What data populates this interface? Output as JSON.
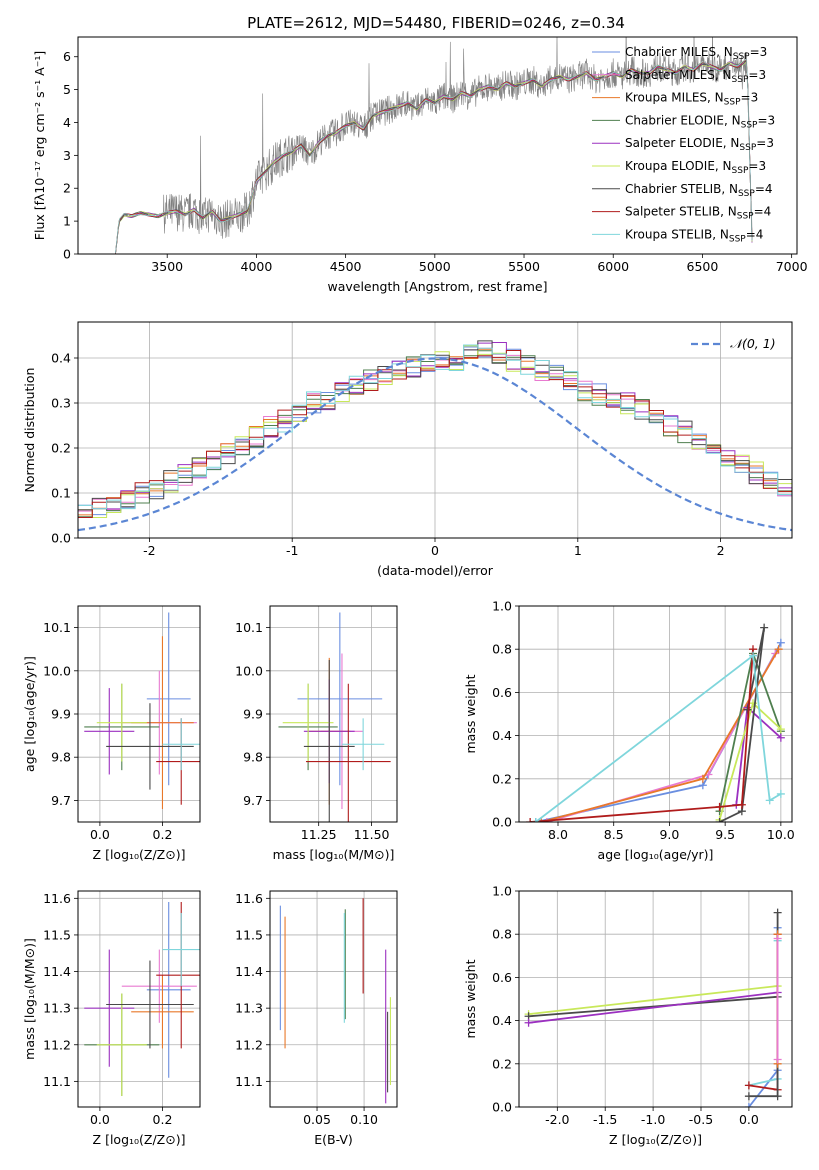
{
  "figure": {
    "title": "PLATE=2612, MJD=54480, FIBERID=0246, z=0.34"
  },
  "colors": {
    "chabrier_miles": "#6a8ee0",
    "salpeter_miles": "#e87ad0",
    "kroupa_miles": "#e8782a",
    "chabrier_elodie": "#4f7f4f",
    "salpeter_elodie": "#9b30c0",
    "kroupa_elodie": "#c8e85a",
    "chabrier_stelib": "#4a4a4a",
    "salpeter_stelib": "#b01c1c",
    "kroupa_stelib": "#7fd6dc",
    "spectrum": "#808080",
    "grid": "#b0b0b0",
    "normal_curve": "#5b86d4"
  },
  "chart_data": [
    {
      "id": "spectrum",
      "type": "line",
      "title": "PLATE=2612, MJD=54480, FIBERID=0246, z=0.34",
      "xlabel": "wavelength [Angstrom, rest frame]",
      "ylabel": "Flux [fλ10⁻¹⁷ erg cm⁻² s⁻¹ A⁻¹]",
      "xlim": [
        3000,
        7030
      ],
      "ylim": [
        0,
        6.6
      ],
      "xticks": [
        3500,
        4000,
        4500,
        5000,
        5500,
        6000,
        6500,
        7000
      ],
      "yticks": [
        0,
        1,
        2,
        3,
        4,
        5,
        6
      ],
      "grid": false,
      "legend_position": "top-right",
      "continuum": {
        "x": [
          3210,
          3230,
          3260,
          3300,
          3350,
          3400,
          3450,
          3500,
          3550,
          3600,
          3650,
          3700,
          3750,
          3800,
          3850,
          3900,
          3950,
          4000,
          4050,
          4100,
          4150,
          4200,
          4250,
          4300,
          4350,
          4400,
          4450,
          4500,
          4550,
          4600,
          4650,
          4700,
          4750,
          4800,
          4850,
          4900,
          4950,
          5000,
          5050,
          5100,
          5150,
          5200,
          5250,
          5300,
          5350,
          5400,
          5450,
          5500,
          5550,
          5600,
          5650,
          5700,
          5750,
          5800,
          5850,
          5900,
          5950,
          6000,
          6050,
          6100,
          6150,
          6200,
          6250,
          6300,
          6350,
          6400,
          6450,
          6500,
          6550,
          6600,
          6650,
          6700,
          6750,
          6780
        ],
        "y": [
          0.0,
          1.0,
          1.2,
          1.15,
          1.25,
          1.2,
          1.15,
          1.25,
          1.3,
          1.2,
          1.35,
          1.1,
          1.3,
          1.0,
          1.1,
          1.2,
          1.3,
          2.2,
          2.5,
          2.8,
          3.0,
          3.1,
          3.3,
          3.0,
          3.4,
          3.6,
          3.7,
          3.9,
          4.0,
          3.8,
          4.2,
          4.3,
          4.4,
          4.5,
          4.6,
          4.4,
          4.7,
          4.6,
          4.8,
          4.7,
          4.9,
          4.8,
          5.0,
          5.1,
          5.0,
          5.2,
          5.1,
          5.2,
          5.3,
          5.1,
          5.3,
          5.4,
          5.3,
          5.4,
          5.5,
          5.3,
          5.4,
          5.5,
          5.4,
          5.6,
          5.5,
          5.5,
          5.7,
          5.6,
          5.5,
          5.7,
          5.6,
          5.8,
          5.7,
          5.6,
          5.8,
          5.7,
          5.9,
          0.0
        ]
      },
      "series": [
        {
          "name": "Chabrier MILES, N_SSP=3",
          "color_key": "chabrier_miles"
        },
        {
          "name": "Salpeter MILES, N_SSP=3",
          "color_key": "salpeter_miles"
        },
        {
          "name": "Kroupa MILES, N_SSP=3",
          "color_key": "kroupa_miles"
        },
        {
          "name": "Chabrier ELODIE, N_SSP=3",
          "color_key": "chabrier_elodie"
        },
        {
          "name": "Salpeter ELODIE, N_SSP=3",
          "color_key": "salpeter_elodie"
        },
        {
          "name": "Kroupa ELODIE, N_SSP=3",
          "color_key": "kroupa_elodie"
        },
        {
          "name": "Chabrier STELIB, N_SSP=4",
          "color_key": "chabrier_stelib"
        },
        {
          "name": "Salpeter STELIB, N_SSP=4",
          "color_key": "salpeter_stelib"
        },
        {
          "name": "Kroupa STELIB, N_SSP=4",
          "color_key": "kroupa_stelib"
        }
      ],
      "legend_labels": [
        {
          "pre": "Chabrier MILES, N",
          "sub": "SSP",
          "post": "=3"
        },
        {
          "pre": "Salpeter MILES, N",
          "sub": "SSP",
          "post": "=3"
        },
        {
          "pre": "Kroupa MILES, N",
          "sub": "SSP",
          "post": "=3"
        },
        {
          "pre": "Chabrier ELODIE, N",
          "sub": "SSP",
          "post": "=3"
        },
        {
          "pre": "Salpeter ELODIE, N",
          "sub": "SSP",
          "post": "=3"
        },
        {
          "pre": "Kroupa ELODIE, N",
          "sub": "SSP",
          "post": "=3"
        },
        {
          "pre": "Chabrier STELIB, N",
          "sub": "SSP",
          "post": "=4"
        },
        {
          "pre": "Salpeter STELIB, N",
          "sub": "SSP",
          "post": "=4"
        },
        {
          "pre": "Kroupa STELIB, N",
          "sub": "SSP",
          "post": "=4"
        }
      ]
    },
    {
      "id": "residuals",
      "type": "line",
      "xlabel": "(data-model)/error",
      "ylabel": "Normed distribution",
      "xlim": [
        -2.5,
        2.5
      ],
      "ylim": [
        0,
        0.48
      ],
      "xticks": [
        -2,
        -1,
        0,
        1,
        2
      ],
      "yticks": [
        0.0,
        0.1,
        0.2,
        0.3,
        0.4
      ],
      "grid": true,
      "legend_position": "top-right",
      "legend_label": "𝒩(0, 1)",
      "bin_width": 0.1,
      "histogram_mean": [
        0.035,
        0.04,
        0.045,
        0.05,
        0.06,
        0.065,
        0.07,
        0.08,
        0.09,
        0.1,
        0.11,
        0.125,
        0.14,
        0.155,
        0.17,
        0.19,
        0.21,
        0.225,
        0.245,
        0.26,
        0.28,
        0.3,
        0.31,
        0.325,
        0.34,
        0.35,
        0.36,
        0.37,
        0.38,
        0.39,
        0.39,
        0.395,
        0.41,
        0.42,
        0.41,
        0.395,
        0.38,
        0.37,
        0.36,
        0.35,
        0.33,
        0.32,
        0.31,
        0.3,
        0.285,
        0.27,
        0.25,
        0.235,
        0.215,
        0.2,
        0.18,
        0.165,
        0.145,
        0.13,
        0.115,
        0.1,
        0.09,
        0.08,
        0.07,
        0.06,
        0.055,
        0.045,
        0.04,
        0.035,
        0.03,
        0.025,
        0.02,
        0.02,
        0.03,
        0.03
      ],
      "normal": {
        "mean": 0,
        "sigma": 1
      }
    },
    {
      "id": "age_vs_Z",
      "type": "scatter",
      "xlabel": "Z [log₁₀(Z/Z⊙)]",
      "ylabel": "age  [log₁₀(age/yr)]",
      "xlim": [
        -0.07,
        0.32
      ],
      "ylim": [
        9.65,
        10.15
      ],
      "xticks": [
        0.0,
        0.2
      ],
      "yticks": [
        9.7,
        9.8,
        9.9,
        10.0,
        10.1
      ],
      "grid": true,
      "points": [
        {
          "color_key": "chabrier_miles",
          "x": 0.22,
          "xerr": 0.07,
          "y": 9.935,
          "yerr": 0.2
        },
        {
          "color_key": "salpeter_miles",
          "x": 0.19,
          "xerr": 0.12,
          "y": 9.88,
          "yerr": 0.12
        },
        {
          "color_key": "kroupa_miles",
          "x": 0.2,
          "xerr": 0.1,
          "y": 9.88,
          "yerr": 0.2
        },
        {
          "color_key": "chabrier_elodie",
          "x": 0.07,
          "xerr": 0.12,
          "y": 9.87,
          "yerr": 0.1
        },
        {
          "color_key": "salpeter_elodie",
          "x": 0.03,
          "xerr": 0.08,
          "y": 9.86,
          "yerr": 0.1
        },
        {
          "color_key": "kroupa_elodie",
          "x": 0.07,
          "xerr": 0.08,
          "y": 9.88,
          "yerr": 0.09
        },
        {
          "color_key": "chabrier_stelib",
          "x": 0.16,
          "xerr": 0.14,
          "y": 9.825,
          "yerr": 0.1
        },
        {
          "color_key": "salpeter_stelib",
          "x": 0.26,
          "xerr": 0.08,
          "y": 9.79,
          "yerr": 0.1
        },
        {
          "color_key": "kroupa_stelib",
          "x": 0.26,
          "xerr": 0.06,
          "y": 9.83,
          "yerr": 0.06
        }
      ]
    },
    {
      "id": "age_vs_mass",
      "type": "scatter",
      "xlabel": "mass [log₁₀(M/M⊙)]",
      "ylabel": "",
      "xlim": [
        11.02,
        11.62
      ],
      "ylim": [
        9.65,
        10.15
      ],
      "xticks": [
        11.25,
        11.5
      ],
      "yticks": [
        9.7,
        9.8,
        9.9,
        10.0,
        10.1
      ],
      "grid": true,
      "points": [
        {
          "color_key": "chabrier_miles",
          "x": 11.35,
          "xerr": 0.2,
          "y": 9.935,
          "yerr": 0.2
        },
        {
          "color_key": "salpeter_miles",
          "x": 11.36,
          "xerr": 0.1,
          "y": 9.86,
          "yerr": 0.18
        },
        {
          "color_key": "kroupa_miles",
          "x": 11.3,
          "xerr": 0.1,
          "y": 9.86,
          "yerr": 0.17
        },
        {
          "color_key": "chabrier_elodie",
          "x": 11.2,
          "xerr": 0.14,
          "y": 9.87,
          "yerr": 0.1
        },
        {
          "color_key": "salpeter_elodie",
          "x": 11.3,
          "xerr": 0.12,
          "y": 9.86,
          "yerr": 0.12
        },
        {
          "color_key": "kroupa_elodie",
          "x": 11.2,
          "xerr": 0.12,
          "y": 9.88,
          "yerr": 0.09
        },
        {
          "color_key": "chabrier_stelib",
          "x": 11.3,
          "xerr": 0.12,
          "y": 9.825,
          "yerr": 0.2
        },
        {
          "color_key": "salpeter_stelib",
          "x": 11.39,
          "xerr": 0.2,
          "y": 9.79,
          "yerr": 0.18
        },
        {
          "color_key": "kroupa_stelib",
          "x": 11.46,
          "xerr": 0.1,
          "y": 9.83,
          "yerr": 0.06
        }
      ]
    },
    {
      "id": "weight_vs_age",
      "type": "line",
      "xlabel": "age  [log₁₀(age/yr)]",
      "ylabel": "mass weight",
      "xlim": [
        7.65,
        10.1
      ],
      "ylim": [
        0,
        1
      ],
      "xticks": [
        8.0,
        8.5,
        9.0,
        9.5,
        10.0
      ],
      "yticks": [
        0.0,
        0.2,
        0.4,
        0.6,
        0.8,
        1.0
      ],
      "grid": true,
      "series": [
        {
          "color_key": "chabrier_miles",
          "x": [
            7.8,
            9.3,
            10.0
          ],
          "y": [
            0.0,
            0.17,
            0.83
          ]
        },
        {
          "color_key": "salpeter_miles",
          "x": [
            7.9,
            9.35,
            9.95
          ],
          "y": [
            0.0,
            0.22,
            0.78
          ]
        },
        {
          "color_key": "kroupa_miles",
          "x": [
            7.85,
            9.3,
            9.98
          ],
          "y": [
            0.0,
            0.2,
            0.8
          ]
        },
        {
          "color_key": "chabrier_elodie",
          "x": [
            9.45,
            9.75,
            10.0
          ],
          "y": [
            0.05,
            0.78,
            0.42
          ]
        },
        {
          "color_key": "salpeter_elodie",
          "x": [
            9.6,
            9.7,
            10.0
          ],
          "y": [
            0.08,
            0.53,
            0.39
          ]
        },
        {
          "color_key": "kroupa_elodie",
          "x": [
            9.45,
            9.75,
            10.0
          ],
          "y": [
            0.01,
            0.55,
            0.43
          ]
        },
        {
          "color_key": "chabrier_stelib",
          "x": [
            9.45,
            9.65,
            9.85,
            9.7
          ],
          "y": [
            0.0,
            0.05,
            0.9,
            0.52
          ]
        },
        {
          "color_key": "salpeter_stelib",
          "x": [
            7.75,
            9.45,
            9.65,
            9.75
          ],
          "y": [
            0.0,
            0.07,
            0.08,
            0.8
          ]
        },
        {
          "color_key": "kroupa_stelib",
          "x": [
            7.8,
            9.75,
            9.9,
            10.0
          ],
          "y": [
            0.0,
            0.77,
            0.1,
            0.13
          ]
        }
      ]
    },
    {
      "id": "mass_vs_Z",
      "type": "scatter",
      "xlabel": "Z [log₁₀(Z/Z⊙)]",
      "ylabel": "mass [log₁₀(M/M⊙)]",
      "xlim": [
        -0.07,
        0.32
      ],
      "ylim": [
        11.03,
        11.62
      ],
      "xticks": [
        0.0,
        0.2
      ],
      "yticks": [
        11.1,
        11.2,
        11.3,
        11.4,
        11.5,
        11.6
      ],
      "grid": true,
      "points": [
        {
          "color_key": "chabrier_miles",
          "x": 0.22,
          "xerr": 0.07,
          "y": 11.35,
          "yerr": 0.24
        },
        {
          "color_key": "salpeter_miles",
          "x": 0.19,
          "xerr": 0.12,
          "y": 11.36,
          "yerr": 0.1
        },
        {
          "color_key": "kroupa_miles",
          "x": 0.2,
          "xerr": 0.1,
          "y": 11.29,
          "yerr": 0.1
        },
        {
          "color_key": "chabrier_elodie",
          "x": 0.07,
          "xerr": 0.12,
          "y": 11.2,
          "yerr": 0.14
        },
        {
          "color_key": "salpeter_elodie",
          "x": 0.03,
          "xerr": 0.08,
          "y": 11.3,
          "yerr": 0.16
        },
        {
          "color_key": "kroupa_elodie",
          "x": 0.07,
          "xerr": 0.08,
          "y": 11.2,
          "yerr": 0.14
        },
        {
          "color_key": "chabrier_stelib",
          "x": 0.16,
          "xerr": 0.14,
          "y": 11.31,
          "yerr": 0.12
        },
        {
          "color_key": "salpeter_stelib",
          "x": 0.26,
          "xerr": 0.08,
          "y": 11.39,
          "yerr": 0.2
        },
        {
          "color_key": "kroupa_stelib",
          "x": 0.26,
          "xerr": 0.06,
          "y": 11.46,
          "yerr": 0.1
        }
      ]
    },
    {
      "id": "mass_vs_ebv",
      "type": "scatter",
      "xlabel": "E(B-V)",
      "ylabel": "",
      "xlim": [
        0.0,
        0.135
      ],
      "ylim": [
        11.03,
        11.62
      ],
      "xticks": [
        0.05,
        0.1
      ],
      "yticks": [
        11.1,
        11.2,
        11.3,
        11.4,
        11.5,
        11.6
      ],
      "grid": true,
      "points": [
        {
          "color_key": "chabrier_miles",
          "x": 0.011,
          "xerr": 0,
          "y": 11.41,
          "yerr": 0.17
        },
        {
          "color_key": "kroupa_miles",
          "x": 0.016,
          "xerr": 0,
          "y": 11.37,
          "yerr": 0.18
        },
        {
          "color_key": "chabrier_elodie",
          "x": 0.08,
          "xerr": 0,
          "y": 11.42,
          "yerr": 0.15
        },
        {
          "color_key": "kroupa_stelib",
          "x": 0.079,
          "xerr": 0,
          "y": 11.41,
          "yerr": 0.15
        },
        {
          "color_key": "salpeter_stelib",
          "x": 0.099,
          "xerr": 0,
          "y": 11.47,
          "yerr": 0.13
        },
        {
          "color_key": "salpeter_elodie",
          "x": 0.123,
          "xerr": 0,
          "y": 11.25,
          "yerr": 0.21
        },
        {
          "color_key": "kroupa_elodie",
          "x": 0.128,
          "xerr": 0,
          "y": 11.21,
          "yerr": 0.12
        },
        {
          "color_key": "chabrier_stelib",
          "x": 0.125,
          "xerr": 0,
          "y": 11.18,
          "yerr": 0.11
        }
      ]
    },
    {
      "id": "weight_vs_Z",
      "type": "line",
      "xlabel": "Z [log₁₀(Z/Z⊙)]",
      "ylabel": "mass weight",
      "xlim": [
        -2.4,
        0.45
      ],
      "ylim": [
        0,
        1
      ],
      "xticks": [
        -2.0,
        -1.5,
        -1.0,
        -0.5,
        0.0
      ],
      "yticks": [
        0.0,
        0.2,
        0.4,
        0.6,
        0.8,
        1.0
      ],
      "grid": true,
      "series": [
        {
          "color_key": "kroupa_elodie",
          "x": [
            -2.3,
            0.3
          ],
          "y": [
            0.43,
            0.56
          ]
        },
        {
          "color_key": "chabrier_stelib",
          "x": [
            -2.3,
            0.3
          ],
          "y": [
            0.42,
            0.51
          ]
        },
        {
          "color_key": "salpeter_elodie",
          "x": [
            -2.3,
            0.3
          ],
          "y": [
            0.39,
            0.53
          ]
        },
        {
          "color_key": "chabrier_miles",
          "x": [
            0.0,
            0.3,
            0.3
          ],
          "y": [
            0.0,
            0.17,
            0.83
          ]
        },
        {
          "color_key": "kroupa_stelib",
          "x": [
            0.0,
            0.3,
            0.3
          ],
          "y": [
            0.1,
            0.13,
            0.77
          ]
        },
        {
          "color_key": "salpeter_stelib",
          "x": [
            0.0,
            0.3,
            0.3
          ],
          "y": [
            0.1,
            0.08,
            0.8
          ]
        },
        {
          "color_key": "chabrier_stelib",
          "x": [
            0.0,
            0.3,
            0.3
          ],
          "y": [
            0.05,
            0.05,
            0.9
          ]
        },
        {
          "color_key": "kroupa_miles",
          "x": [
            0.3,
            0.3
          ],
          "y": [
            0.2,
            0.8
          ]
        },
        {
          "color_key": "salpeter_miles",
          "x": [
            0.3,
            0.3
          ],
          "y": [
            0.22,
            0.78
          ]
        }
      ]
    }
  ]
}
